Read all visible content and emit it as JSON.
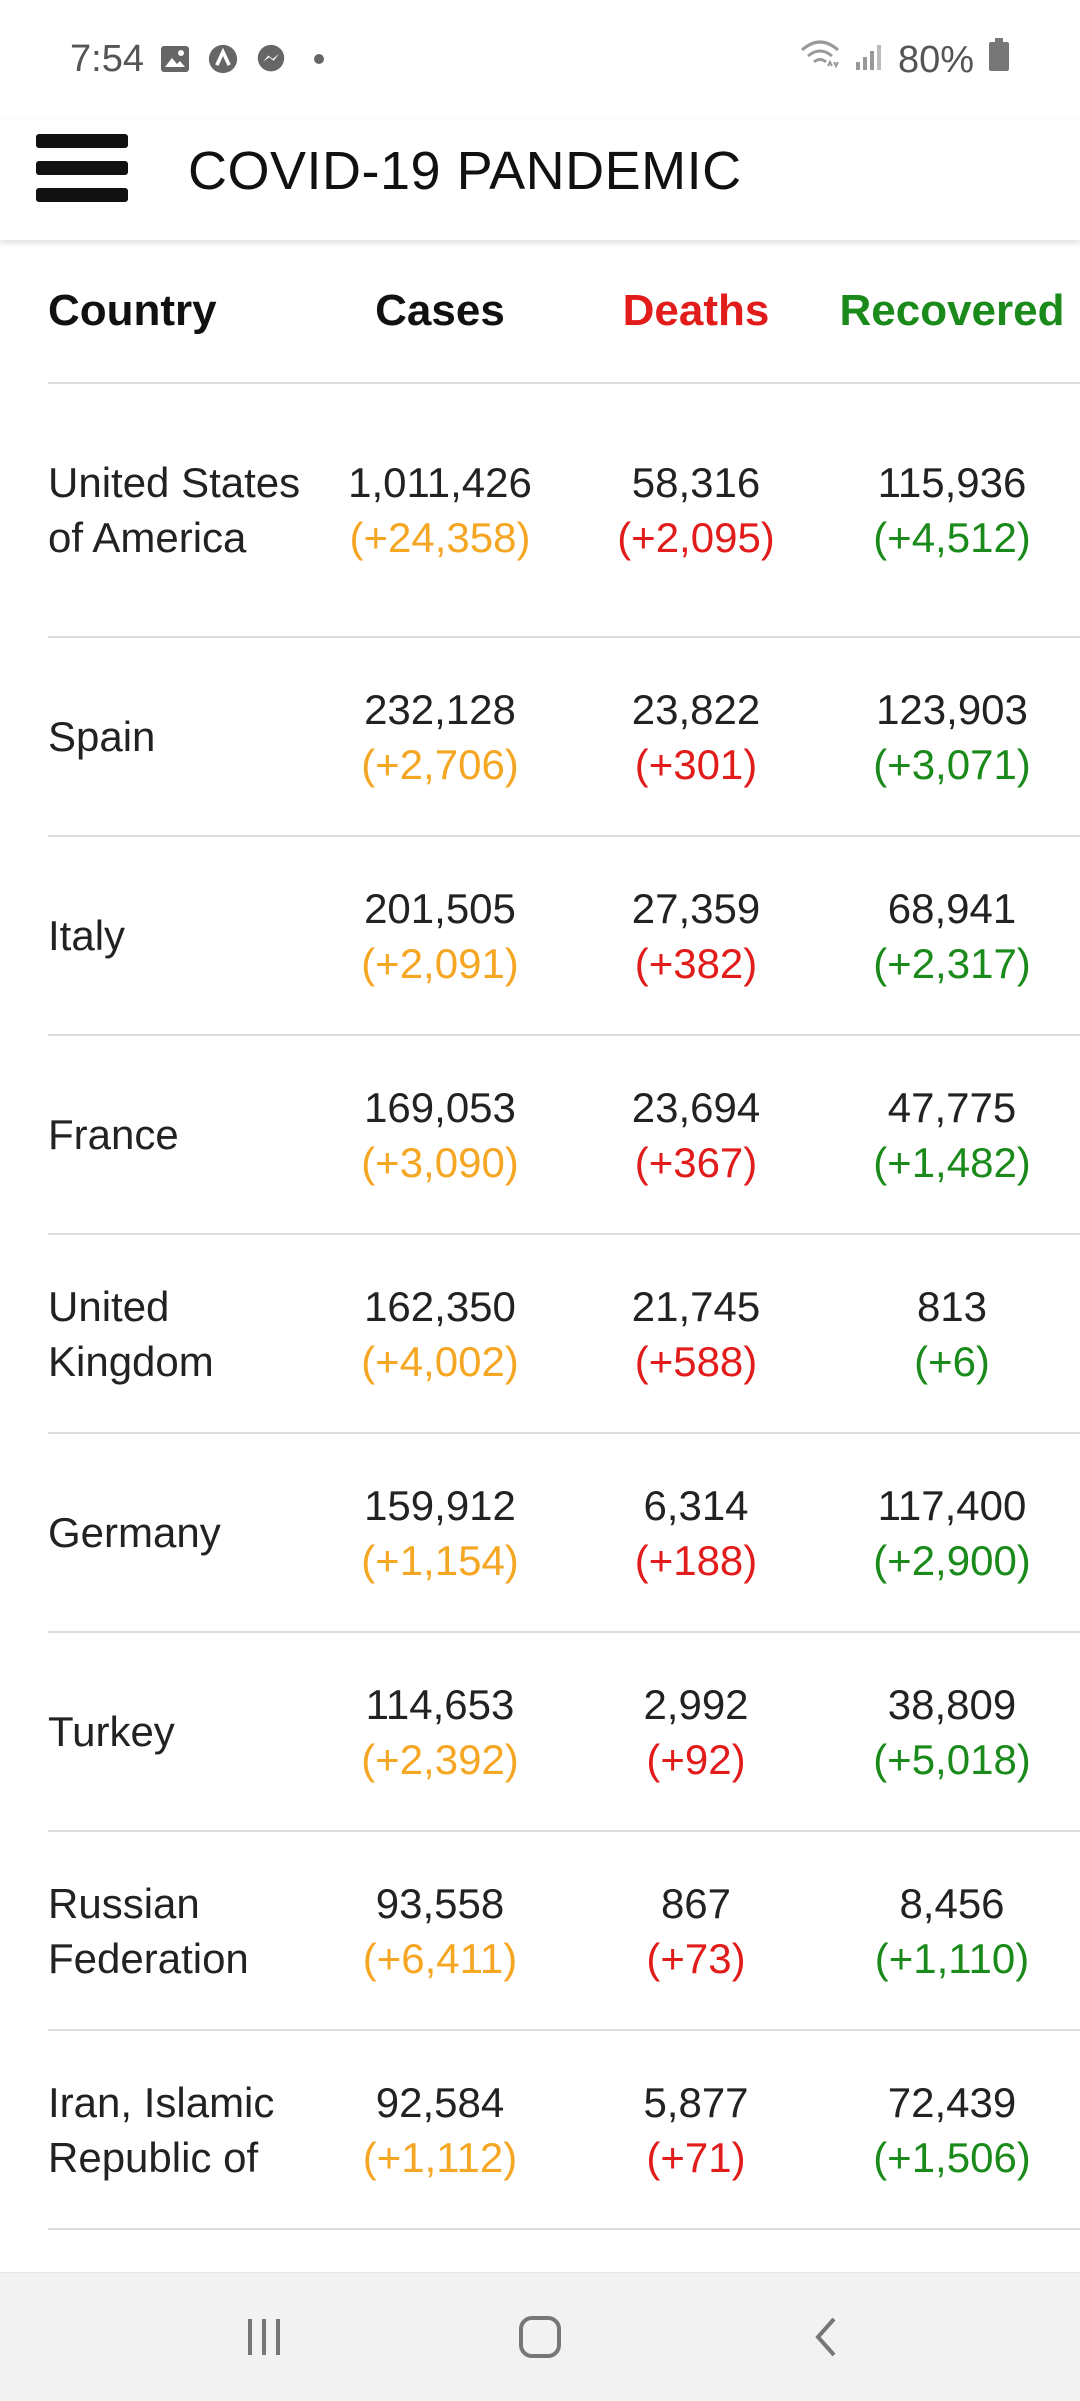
{
  "status_bar": {
    "time": "7:54",
    "battery": "80%",
    "icons": [
      "image-icon",
      "arc-icon",
      "messenger-icon",
      "dot-icon",
      "wifi-icon",
      "signal-icon",
      "battery-icon"
    ]
  },
  "app_bar": {
    "title": "COVID-19 PANDEMIC"
  },
  "table": {
    "headers": {
      "country": "Country",
      "cases": "Cases",
      "deaths": "Deaths",
      "recovered": "Recovered"
    },
    "rows": [
      {
        "country": "United States of America",
        "cases": "1,011,426",
        "cases_delta": "(+24,358)",
        "deaths": "58,316",
        "deaths_delta": "(+2,095)",
        "recovered": "115,936",
        "recovered_delta": "(+4,512)"
      },
      {
        "country": "Spain",
        "cases": "232,128",
        "cases_delta": "(+2,706)",
        "deaths": "23,822",
        "deaths_delta": "(+301)",
        "recovered": "123,903",
        "recovered_delta": "(+3,071)"
      },
      {
        "country": "Italy",
        "cases": "201,505",
        "cases_delta": "(+2,091)",
        "deaths": "27,359",
        "deaths_delta": "(+382)",
        "recovered": "68,941",
        "recovered_delta": "(+2,317)"
      },
      {
        "country": "France",
        "cases": "169,053",
        "cases_delta": "(+3,090)",
        "deaths": "23,694",
        "deaths_delta": "(+367)",
        "recovered": "47,775",
        "recovered_delta": "(+1,482)"
      },
      {
        "country": "United Kingdom",
        "cases": "162,350",
        "cases_delta": "(+4,002)",
        "deaths": "21,745",
        "deaths_delta": "(+588)",
        "recovered": "813",
        "recovered_delta": "(+6)"
      },
      {
        "country": "Germany",
        "cases": "159,912",
        "cases_delta": "(+1,154)",
        "deaths": "6,314",
        "deaths_delta": "(+188)",
        "recovered": "117,400",
        "recovered_delta": "(+2,900)"
      },
      {
        "country": "Turkey",
        "cases": "114,653",
        "cases_delta": "(+2,392)",
        "deaths": "2,992",
        "deaths_delta": "(+92)",
        "recovered": "38,809",
        "recovered_delta": "(+5,018)"
      },
      {
        "country": "Russian Federation",
        "cases": "93,558",
        "cases_delta": "(+6,411)",
        "deaths": "867",
        "deaths_delta": "(+73)",
        "recovered": "8,456",
        "recovered_delta": "(+1,110)"
      },
      {
        "country": "Iran, Islamic Republic of",
        "cases": "92,584",
        "cases_delta": "(+1,112)",
        "deaths": "5,877",
        "deaths_delta": "(+71)",
        "recovered": "72,439",
        "recovered_delta": "(+1,506)"
      }
    ]
  },
  "colors": {
    "deaths": "#e21b1b",
    "recovered": "#1a8a1a",
    "cases_delta": "#f5a623"
  },
  "nav_bar": {
    "buttons": [
      "recent-apps-icon",
      "home-icon",
      "back-icon"
    ]
  }
}
